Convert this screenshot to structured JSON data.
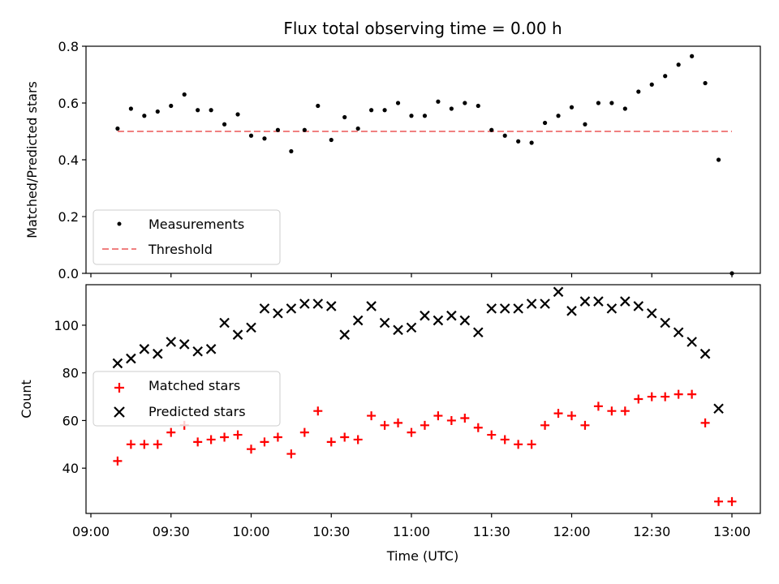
{
  "chart_data": [
    {
      "type": "scatter",
      "title": "Flux total observing time = 0.00 h",
      "xlabel": "",
      "ylabel": "Matched/Predicted stars",
      "ylim": [
        0,
        0.8
      ],
      "yticks": [
        0,
        0.2,
        0.4,
        0.6,
        0.8
      ],
      "ytick_labels": [
        "0.0",
        "0.2",
        "0.4",
        "0.6",
        "0.8"
      ],
      "grid": false,
      "legend": "lower-left",
      "series": [
        {
          "name": "Measurements",
          "marker": "dot",
          "color": "#000000",
          "x": [
            "09:10",
            "09:15",
            "09:20",
            "09:25",
            "09:30",
            "09:35",
            "09:40",
            "09:45",
            "09:50",
            "09:55",
            "10:00",
            "10:05",
            "10:10",
            "10:15",
            "10:20",
            "10:25",
            "10:30",
            "10:35",
            "10:40",
            "10:45",
            "10:50",
            "10:55",
            "11:00",
            "11:05",
            "11:10",
            "11:15",
            "11:20",
            "11:25",
            "11:30",
            "11:35",
            "11:40",
            "11:45",
            "11:50",
            "11:55",
            "12:00",
            "12:05",
            "12:10",
            "12:15",
            "12:20",
            "12:25",
            "12:30",
            "12:35",
            "12:40",
            "12:45",
            "12:50",
            "12:55",
            "13:00"
          ],
          "y": [
            0.51,
            0.58,
            0.555,
            0.57,
            0.59,
            0.63,
            0.575,
            0.575,
            0.525,
            0.56,
            0.485,
            0.475,
            0.505,
            0.43,
            0.505,
            0.59,
            0.47,
            0.55,
            0.51,
            0.575,
            0.575,
            0.6,
            0.555,
            0.555,
            0.605,
            0.58,
            0.6,
            0.59,
            0.505,
            0.485,
            0.465,
            0.46,
            0.53,
            0.555,
            0.585,
            0.525,
            0.6,
            0.6,
            0.58,
            0.64,
            0.665,
            0.695,
            0.735,
            0.765,
            0.67,
            0.4,
            0.0
          ]
        },
        {
          "name": "Threshold",
          "style": "dashed",
          "color": "#f08080",
          "x": [
            "09:10",
            "13:00"
          ],
          "y": [
            0.5,
            0.5
          ]
        }
      ]
    },
    {
      "type": "scatter",
      "title": "",
      "xlabel": "Time (UTC)",
      "ylabel": "Count",
      "ylim": [
        21,
        117
      ],
      "yticks": [
        40,
        60,
        80,
        100
      ],
      "ytick_labels": [
        "40",
        "60",
        "80",
        "100"
      ],
      "xlim": [
        "09:00",
        "13:00"
      ],
      "xticks": [
        "09:00",
        "09:30",
        "10:00",
        "10:30",
        "11:00",
        "11:30",
        "12:00",
        "12:30",
        "13:00"
      ],
      "xtick_labels": [
        "09:00",
        "09:30",
        "10:00",
        "10:30",
        "11:00",
        "11:30",
        "12:00",
        "12:30",
        "13:00"
      ],
      "grid": false,
      "legend": "center-left",
      "series": [
        {
          "name": "Matched stars",
          "marker": "plus",
          "color": "#ff0000",
          "x": [
            "09:10",
            "09:15",
            "09:20",
            "09:25",
            "09:30",
            "09:35",
            "09:40",
            "09:45",
            "09:50",
            "09:55",
            "10:00",
            "10:05",
            "10:10",
            "10:15",
            "10:20",
            "10:25",
            "10:30",
            "10:35",
            "10:40",
            "10:45",
            "10:50",
            "10:55",
            "11:00",
            "11:05",
            "11:10",
            "11:15",
            "11:20",
            "11:25",
            "11:30",
            "11:35",
            "11:40",
            "11:45",
            "11:50",
            "11:55",
            "12:00",
            "12:05",
            "12:10",
            "12:15",
            "12:20",
            "12:25",
            "12:30",
            "12:35",
            "12:40",
            "12:45",
            "12:50",
            "12:55",
            "13:00"
          ],
          "y": [
            43,
            50,
            50,
            50,
            55,
            58,
            51,
            52,
            53,
            54,
            48,
            51,
            53,
            46,
            55,
            64,
            51,
            53,
            52,
            62,
            58,
            59,
            55,
            58,
            62,
            60,
            61,
            57,
            54,
            52,
            50,
            50,
            58,
            63,
            62,
            58,
            66,
            64,
            64,
            69,
            70,
            70,
            71,
            71,
            59,
            26,
            26
          ]
        },
        {
          "name": "Predicted stars",
          "marker": "x",
          "color": "#000000",
          "x": [
            "09:10",
            "09:15",
            "09:20",
            "09:25",
            "09:30",
            "09:35",
            "09:40",
            "09:45",
            "09:50",
            "09:55",
            "10:00",
            "10:05",
            "10:10",
            "10:15",
            "10:20",
            "10:25",
            "10:30",
            "10:35",
            "10:40",
            "10:45",
            "10:50",
            "10:55",
            "11:00",
            "11:05",
            "11:10",
            "11:15",
            "11:20",
            "11:25",
            "11:30",
            "11:35",
            "11:40",
            "11:45",
            "11:50",
            "11:55",
            "12:00",
            "12:05",
            "12:10",
            "12:15",
            "12:20",
            "12:25",
            "12:30",
            "12:35",
            "12:40",
            "12:45",
            "12:50",
            "12:55"
          ],
          "y": [
            84,
            86,
            90,
            88,
            93,
            92,
            89,
            90,
            101,
            96,
            99,
            107,
            105,
            107,
            109,
            109,
            108,
            96,
            102,
            108,
            101,
            98,
            99,
            104,
            102,
            104,
            102,
            97,
            107,
            107,
            107,
            109,
            109,
            114,
            106,
            110,
            110,
            107,
            110,
            108,
            105,
            101,
            97,
            93,
            88,
            65
          ]
        }
      ]
    }
  ]
}
